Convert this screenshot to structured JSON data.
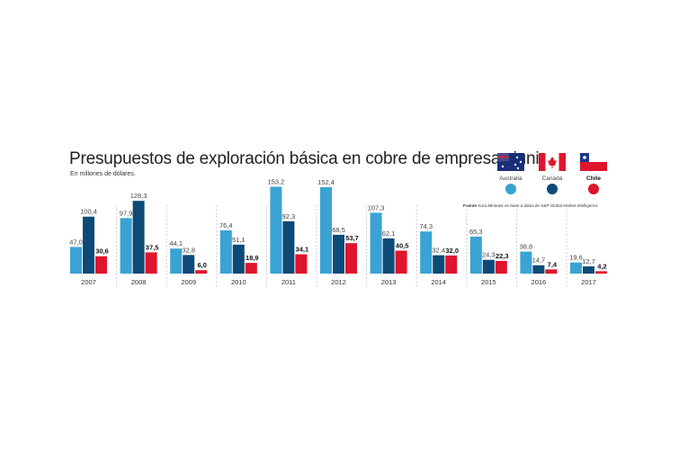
{
  "chart_data": {
    "type": "bar",
    "title": "Presupuestos de exploración básica en cobre de empresas junior",
    "subtitle": "En millones de dólares.",
    "source_label": "Fuente",
    "source_text": "Kura Minerals en base a datos de S&P Global Market Intelligence",
    "categories": [
      "2007",
      "2008",
      "2009",
      "2010",
      "2011",
      "2012",
      "2013",
      "2014",
      "2015",
      "2016",
      "2017"
    ],
    "series": [
      {
        "name": "Australia",
        "color": "#3aa3d4",
        "flag": "australia-flag",
        "values": [
          47.0,
          97.9,
          44.1,
          76.4,
          153.2,
          152.4,
          107.3,
          74.3,
          65.3,
          38.8,
          19.6
        ],
        "labels": [
          "47,0",
          "97,9",
          "44,1",
          "76,4",
          "153,2",
          "152,4",
          "107,3",
          "74,3",
          "65,3",
          "38,8",
          "19,6"
        ]
      },
      {
        "name": "Canadá",
        "color": "#0d4a78",
        "flag": "canada-flag",
        "values": [
          100.4,
          128.3,
          32.8,
          51.1,
          92.3,
          68.5,
          62.1,
          32.4,
          24.3,
          14.7,
          12.7
        ],
        "labels": [
          "100,4",
          "128,3",
          "32,8",
          "51,1",
          "92,3",
          "68,5",
          "62,1",
          "32,4",
          "24,3",
          "14,7",
          "12,7"
        ]
      },
      {
        "name": "Chile",
        "color": "#e0142c",
        "flag": "chile-flag",
        "values": [
          30.6,
          37.5,
          6.0,
          18.9,
          34.1,
          53.7,
          40.5,
          32.0,
          22.3,
          7.4,
          4.2
        ],
        "labels": [
          "30,6",
          "37,5",
          "6,0",
          "18,9",
          "34,1",
          "53,7",
          "40,5",
          "32,0",
          "22,3",
          "7,4",
          "4,2"
        ]
      }
    ],
    "ylim": [
      0,
      160
    ],
    "grid": false,
    "legend": "top-right"
  }
}
